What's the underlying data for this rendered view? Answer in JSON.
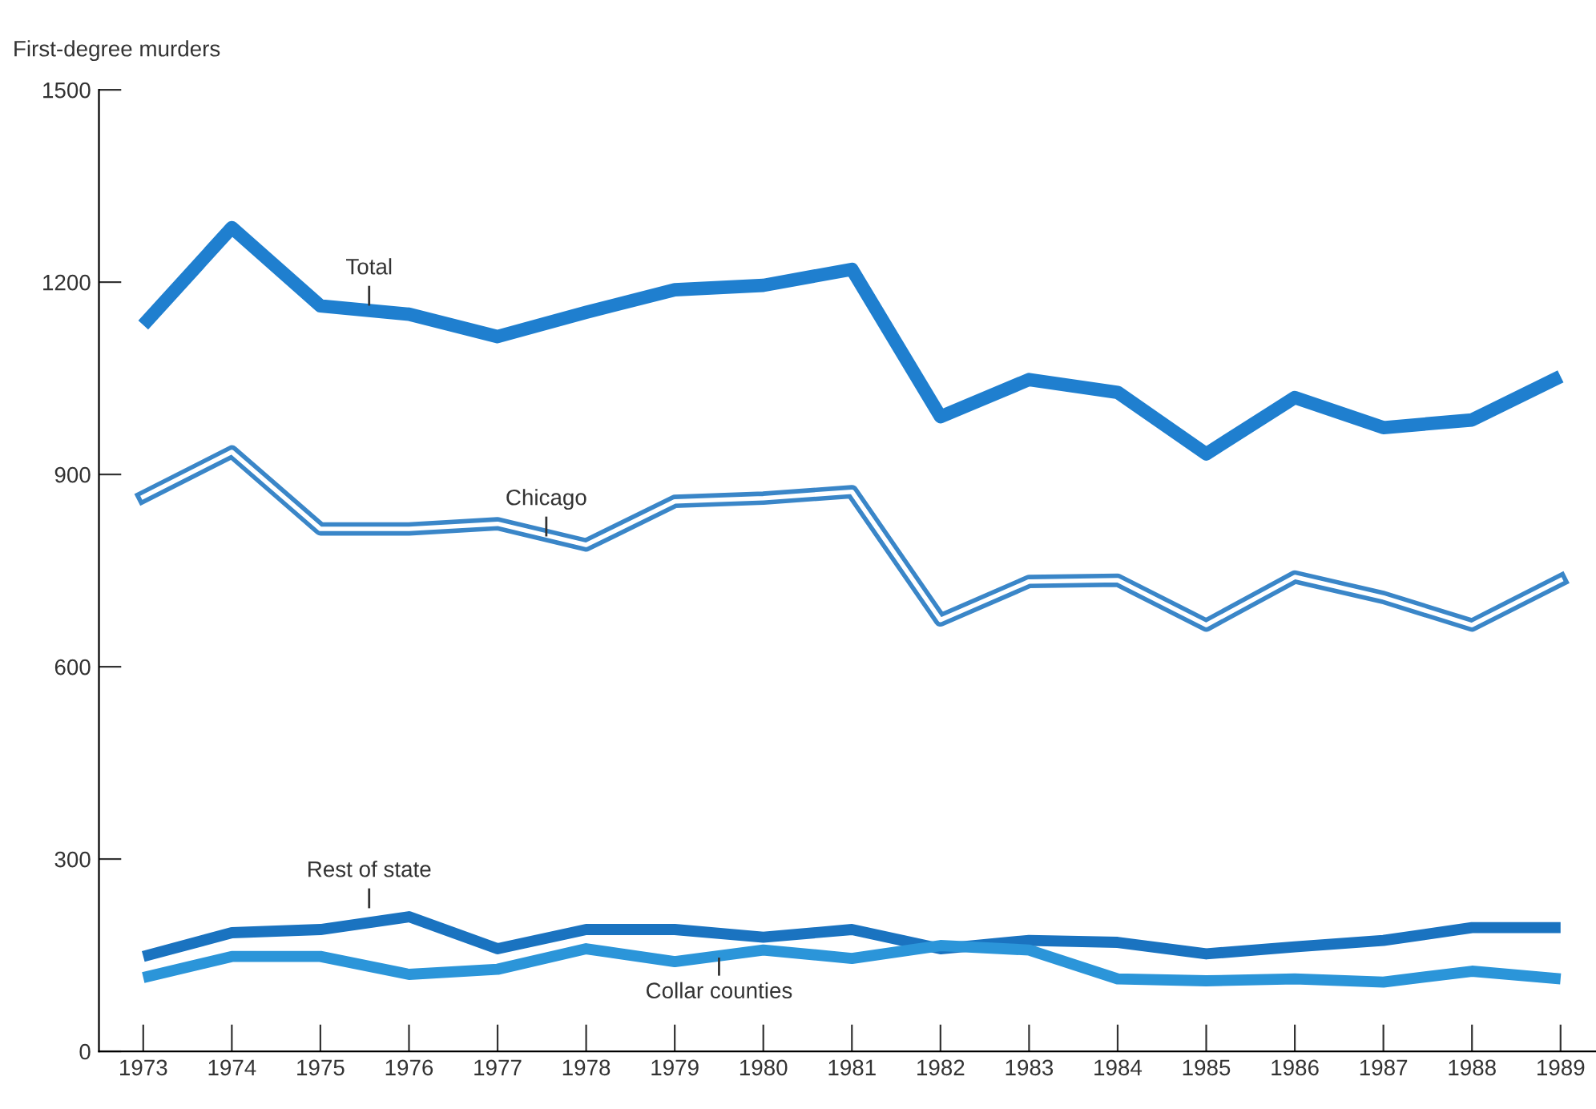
{
  "chart_data": {
    "type": "line",
    "ylabel": "First-degree murders",
    "x": [
      1973,
      1974,
      1975,
      1976,
      1977,
      1978,
      1979,
      1980,
      1981,
      1982,
      1983,
      1984,
      1985,
      1986,
      1987,
      1988,
      1989
    ],
    "series": [
      {
        "name": "Total",
        "color": "#1f7fcf",
        "values": [
          1133,
          1285,
          1163,
          1150,
          1115,
          1153,
          1188,
          1195,
          1220,
          990,
          1048,
          1028,
          932,
          1020,
          973,
          985,
          1053
        ]
      },
      {
        "name": "Chicago",
        "color": "#3a86c8",
        "values": [
          865,
          935,
          815,
          815,
          823,
          790,
          858,
          863,
          873,
          673,
          733,
          735,
          665,
          740,
          708,
          665,
          735
        ]
      },
      {
        "name": "Rest of state",
        "color": "#1a73c0",
        "values": [
          148,
          185,
          190,
          210,
          160,
          190,
          190,
          178,
          190,
          160,
          173,
          170,
          152,
          163,
          173,
          193,
          193
        ]
      },
      {
        "name": "Collar counties",
        "color": "#2b95d9",
        "values": [
          115,
          148,
          148,
          120,
          128,
          160,
          140,
          158,
          145,
          165,
          158,
          113,
          110,
          113,
          108,
          125,
          113
        ]
      }
    ],
    "xlim": [
      1972.5,
      1989.4
    ],
    "ylim": [
      0,
      1500
    ],
    "xticks": [
      1973,
      1974,
      1975,
      1976,
      1977,
      1978,
      1979,
      1980,
      1981,
      1982,
      1983,
      1984,
      1985,
      1986,
      1987,
      1988,
      1989
    ],
    "yticks": [
      0,
      300,
      600,
      900,
      1200,
      1500
    ],
    "grid": false,
    "legend": false,
    "marker": "none",
    "line_style": "solid"
  }
}
